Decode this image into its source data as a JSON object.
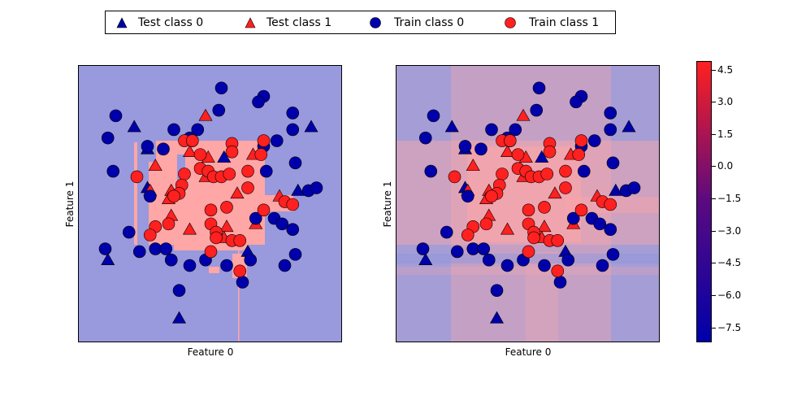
{
  "legend": {
    "items": [
      {
        "label": "Test class 0",
        "marker": "triangle",
        "color": "#0000aa"
      },
      {
        "label": "Test class 1",
        "marker": "triangle",
        "color": "#ff2020"
      },
      {
        "label": "Train class 0",
        "marker": "circle",
        "color": "#0000aa"
      },
      {
        "label": "Train class 1",
        "marker": "circle",
        "color": "#ff2020"
      }
    ]
  },
  "chart_data": {
    "type": "scatter",
    "panels": [
      {
        "xlabel": "Feature 0",
        "ylabel": "Feature 1",
        "background": "decision boundary (binary regions)",
        "region_colors": {
          "class0": "#9999dd",
          "class1": "#ffa6a6"
        }
      },
      {
        "xlabel": "Feature 0",
        "ylabel": "Feature 1",
        "background": "decision function (continuous)",
        "region_colors": {
          "class0": "#9999dd",
          "class1": "#ffa6a6"
        }
      }
    ],
    "xlim": [
      0,
      10
    ],
    "ylim": [
      0,
      10
    ],
    "ticks_visible": false,
    "grid": false,
    "legend_placement": "top-center (outside)",
    "series": [
      {
        "name": "Test class 0",
        "marker": "triangle",
        "color": "#0000aa",
        "points": [
          [
            2.1,
            7.8
          ],
          [
            8.8,
            7.8
          ],
          [
            5.5,
            6.7
          ],
          [
            2.6,
            7.0
          ],
          [
            2.6,
            5.6
          ],
          [
            8.3,
            5.5
          ],
          [
            1.1,
            3.0
          ],
          [
            6.4,
            3.3
          ],
          [
            3.8,
            0.9
          ]
        ]
      },
      {
        "name": "Test class 1",
        "marker": "triangle",
        "color": "#ff2020",
        "points": [
          [
            4.8,
            8.2
          ],
          [
            4.2,
            6.9
          ],
          [
            4.9,
            6.7
          ],
          [
            2.9,
            6.4
          ],
          [
            6.6,
            6.8
          ],
          [
            4.8,
            6.0
          ],
          [
            2.7,
            5.5
          ],
          [
            3.5,
            5.5
          ],
          [
            3.4,
            5.2
          ],
          [
            6.0,
            5.4
          ],
          [
            7.6,
            5.3
          ],
          [
            3.5,
            4.6
          ],
          [
            4.2,
            4.1
          ],
          [
            5.6,
            4.2
          ],
          [
            5.5,
            3.8
          ],
          [
            6.7,
            4.3
          ]
        ]
      },
      {
        "name": "Train class 0",
        "marker": "circle",
        "color": "#0000aa",
        "points": [
          [
            5.4,
            9.2
          ],
          [
            7.0,
            8.9
          ],
          [
            6.8,
            8.7
          ],
          [
            1.4,
            8.2
          ],
          [
            5.3,
            8.4
          ],
          [
            4.5,
            7.7
          ],
          [
            8.1,
            8.3
          ],
          [
            7.0,
            7.1
          ],
          [
            3.6,
            7.7
          ],
          [
            1.1,
            7.4
          ],
          [
            4.3,
            7.3
          ],
          [
            8.1,
            7.7
          ],
          [
            4.2,
            7.4
          ],
          [
            7.5,
            7.3
          ],
          [
            1.3,
            6.2
          ],
          [
            3.2,
            7.0
          ],
          [
            2.6,
            7.1
          ],
          [
            8.2,
            6.5
          ],
          [
            7.1,
            6.2
          ],
          [
            8.7,
            5.5
          ],
          [
            9.0,
            5.6
          ],
          [
            2.7,
            5.3
          ],
          [
            1.9,
            4.0
          ],
          [
            1.0,
            3.4
          ],
          [
            2.3,
            3.3
          ],
          [
            2.9,
            3.4
          ],
          [
            3.3,
            3.4
          ],
          [
            3.5,
            3.0
          ],
          [
            4.2,
            2.8
          ],
          [
            4.8,
            3.0
          ],
          [
            5.6,
            2.8
          ],
          [
            6.5,
            3.0
          ],
          [
            6.2,
            2.2
          ],
          [
            7.8,
            2.8
          ],
          [
            8.2,
            3.2
          ],
          [
            7.4,
            4.5
          ],
          [
            7.7,
            4.3
          ],
          [
            8.1,
            4.1
          ],
          [
            6.7,
            4.5
          ],
          [
            3.8,
            1.9
          ]
        ]
      },
      {
        "name": "Train class 1",
        "marker": "circle",
        "color": "#ff2020",
        "points": [
          [
            4.0,
            7.3
          ],
          [
            4.3,
            7.3
          ],
          [
            5.8,
            7.2
          ],
          [
            5.8,
            6.9
          ],
          [
            7.0,
            7.3
          ],
          [
            4.6,
            6.8
          ],
          [
            6.9,
            6.8
          ],
          [
            4.0,
            6.1
          ],
          [
            4.6,
            6.3
          ],
          [
            4.9,
            6.2
          ],
          [
            5.1,
            6.0
          ],
          [
            5.4,
            6.0
          ],
          [
            5.7,
            6.1
          ],
          [
            6.4,
            6.2
          ],
          [
            2.2,
            6.0
          ],
          [
            3.9,
            5.7
          ],
          [
            6.4,
            5.6
          ],
          [
            3.8,
            5.4
          ],
          [
            3.6,
            5.3
          ],
          [
            7.8,
            5.1
          ],
          [
            8.1,
            5.0
          ],
          [
            5.0,
            4.8
          ],
          [
            5.6,
            4.9
          ],
          [
            7.0,
            4.8
          ],
          [
            2.9,
            4.2
          ],
          [
            3.4,
            4.3
          ],
          [
            2.7,
            3.9
          ],
          [
            5.0,
            4.3
          ],
          [
            5.2,
            4.0
          ],
          [
            5.2,
            3.8
          ],
          [
            5.8,
            3.7
          ],
          [
            6.1,
            3.7
          ],
          [
            5.0,
            3.3
          ],
          [
            6.1,
            2.6
          ]
        ]
      }
    ],
    "colorbar": {
      "ticks": [
        "4.5",
        "3.0",
        "1.5",
        "0.0",
        "−1.5",
        "−3.0",
        "−4.5",
        "−6.0",
        "−7.5"
      ],
      "tick_values": [
        4.5,
        3.0,
        1.5,
        0.0,
        -1.5,
        -3.0,
        -4.5,
        -6.0,
        -7.5
      ],
      "range": [
        -8.2,
        4.9
      ],
      "colormap": [
        "#0000aa",
        "#ff2020"
      ]
    }
  }
}
